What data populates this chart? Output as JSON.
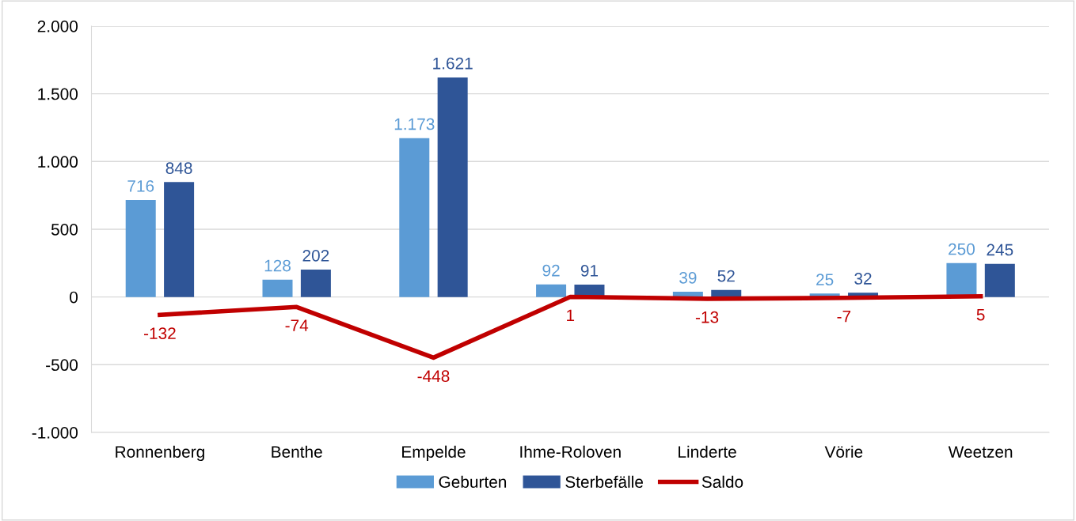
{
  "chart_data": {
    "type": "bar",
    "categories": [
      "Ronnenberg",
      "Benthe",
      "Empelde",
      "Ihme-Roloven",
      "Linderte",
      "Vörie",
      "Weetzen"
    ],
    "series": [
      {
        "name": "Geburten",
        "color": "#5b9bd5",
        "values": [
          716,
          128,
          1173,
          92,
          39,
          25,
          250
        ],
        "value_labels": [
          "716",
          "128",
          "1.173",
          "92",
          "39",
          "25",
          "250"
        ]
      },
      {
        "name": "Sterbefälle",
        "color": "#2f5597",
        "values": [
          848,
          202,
          1621,
          91,
          52,
          32,
          245
        ],
        "value_labels": [
          "848",
          "202",
          "1.621",
          "91",
          "52",
          "32",
          "245"
        ]
      },
      {
        "name": "Saldo",
        "type": "line",
        "color": "#c00000",
        "values": [
          -132,
          -74,
          -448,
          1,
          -13,
          -7,
          5
        ],
        "value_labels": [
          "-132",
          "-74",
          "-448",
          "1",
          "-13",
          "-7",
          "5"
        ]
      }
    ],
    "ylim": [
      -1000,
      2000
    ],
    "yticks": [
      {
        "value": -1000,
        "label": "-1.000"
      },
      {
        "value": -500,
        "label": "-500"
      },
      0,
      500,
      {
        "value": 1000,
        "label": "1.000"
      },
      {
        "value": 1500,
        "label": "1.500"
      },
      {
        "value": 2000,
        "label": "2.000"
      }
    ],
    "grid": "y",
    "legend": "bottom",
    "marker": "none",
    "line_style": "solid"
  }
}
